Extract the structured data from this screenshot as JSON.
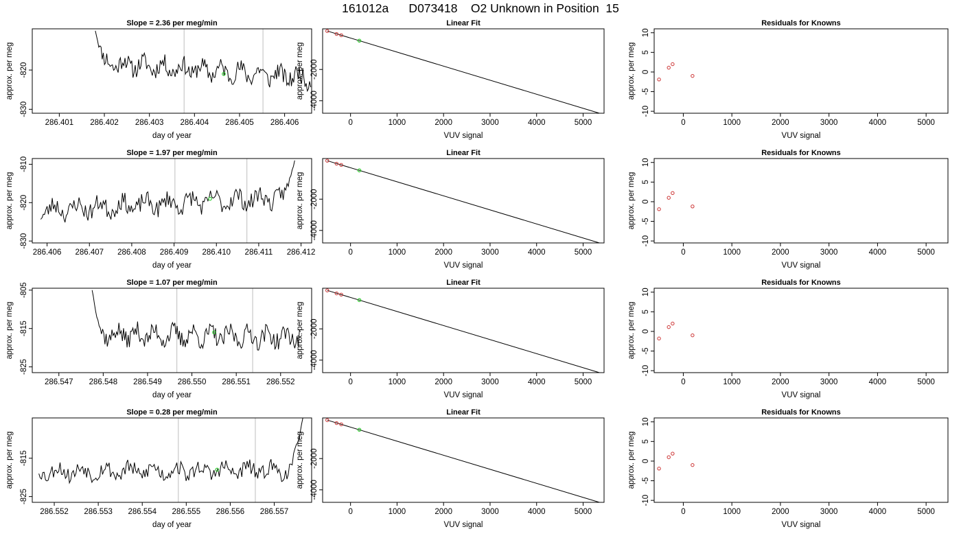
{
  "page": {
    "title": "161012a      D073418    O2 Unknown in Position  15"
  },
  "chart_data": [
    {
      "type": "line",
      "title": "Slope =  2.36  per meg/min",
      "xlabel": "day of year",
      "ylabel": "approx. per meg",
      "xlim": [
        286.4004,
        286.4066
      ],
      "ylim": [
        -831,
        -809.5
      ],
      "xticks": [
        "286.401",
        "286.402",
        "286.403",
        "286.404",
        "286.405",
        "286.406"
      ],
      "yticks": [
        -830,
        -820
      ],
      "vlines": [
        286.40377,
        286.40552
      ],
      "series": [
        {
          "trace": {
            "start": 286.4018,
            "end": 286.40658,
            "n": 190,
            "high": -810,
            "base": -818.0,
            "slope": -4.0,
            "noise": 2.2,
            "seed": 11,
            "spike": "start"
          }
        }
      ],
      "marker": {
        "x": 286.40465,
        "y": -821,
        "color": "#33cc33"
      }
    },
    {
      "type": "line",
      "title": "Linear Fit",
      "xlabel": "VUV signal",
      "ylabel": "approx. per meg",
      "xlim": [
        -600,
        5450
      ],
      "ylim": [
        -4800,
        600
      ],
      "xticks": [
        0,
        1000,
        2000,
        3000,
        4000,
        5000
      ],
      "yticks": [
        -4000,
        -2000
      ],
      "line": {
        "x": [
          -500,
          5350
        ],
        "y": [
          460,
          -4800
        ]
      },
      "points": {
        "x": [
          -500,
          -300,
          -200
        ],
        "y": [
          460,
          270,
          190
        ],
        "color": "#cc3333"
      },
      "marker": {
        "x": 190,
        "y": -160,
        "color": "#33cc33"
      }
    },
    {
      "type": "scatter",
      "title": "Residuals for Knowns",
      "xlabel": "VUV signal",
      "ylabel": "approx. per meg",
      "xlim": [
        -600,
        5450
      ],
      "ylim": [
        -10.5,
        11
      ],
      "xticks": [
        0,
        1000,
        2000,
        3000,
        4000,
        5000
      ],
      "yticks": [
        -10,
        -5,
        0,
        5,
        10
      ],
      "points": {
        "x": [
          -500,
          -300,
          -220,
          190
        ],
        "y": [
          -1.9,
          1.1,
          2.0,
          -1.0
        ],
        "color": "#cc3333"
      }
    },
    {
      "type": "line",
      "title": "Slope =  1.97  per meg/min",
      "xlabel": "day of year",
      "ylabel": "approx. per meg",
      "xlim": [
        286.40565,
        286.41225
      ],
      "ylim": [
        -830.5,
        -808.5
      ],
      "xticks": [
        "286.406",
        "286.407",
        "286.408",
        "286.409",
        "286.410",
        "286.411",
        "286.412"
      ],
      "yticks": [
        -830,
        -820,
        -810
      ],
      "vlines": [
        286.40902,
        286.41072
      ],
      "series": [
        {
          "trace": {
            "start": 286.40585,
            "end": 286.41185,
            "n": 200,
            "high": -809,
            "base": -822.0,
            "slope": 3.5,
            "noise": 2.3,
            "seed": 23,
            "spike": "end"
          }
        }
      ],
      "marker": {
        "x": 286.40985,
        "y": -819,
        "color": "#33cc33"
      }
    },
    {
      "type": "line",
      "title": "Linear Fit",
      "xlabel": "VUV signal",
      "ylabel": "approx. per meg",
      "xlim": [
        -600,
        5450
      ],
      "ylim": [
        -4800,
        600
      ],
      "xticks": [
        0,
        1000,
        2000,
        3000,
        4000,
        5000
      ],
      "yticks": [
        -4000,
        -2000
      ],
      "line": {
        "x": [
          -500,
          5350
        ],
        "y": [
          460,
          -4800
        ]
      },
      "points": {
        "x": [
          -500,
          -300,
          -200
        ],
        "y": [
          460,
          270,
          190
        ],
        "color": "#cc3333"
      },
      "marker": {
        "x": 190,
        "y": -160,
        "color": "#33cc33"
      }
    },
    {
      "type": "scatter",
      "title": "Residuals for Knowns",
      "xlabel": "VUV signal",
      "ylabel": "approx. per meg",
      "xlim": [
        -600,
        5450
      ],
      "ylim": [
        -10.5,
        11
      ],
      "xticks": [
        0,
        1000,
        2000,
        3000,
        4000,
        5000
      ],
      "yticks": [
        -10,
        -5,
        0,
        5,
        10
      ],
      "points": {
        "x": [
          -500,
          -300,
          -220,
          190
        ],
        "y": [
          -1.9,
          1.0,
          2.2,
          -1.2
        ],
        "color": "#cc3333"
      }
    },
    {
      "type": "line",
      "title": "Slope =  1.07  per meg/min",
      "xlabel": "day of year",
      "ylabel": "approx. per meg",
      "xlim": [
        286.5464,
        286.5527
      ],
      "ylim": [
        -826.5,
        -804.5
      ],
      "xticks": [
        "286.547",
        "286.548",
        "286.549",
        "286.550",
        "286.551",
        "286.552"
      ],
      "yticks": [
        -825,
        -815,
        -805
      ],
      "vlines": [
        286.54966,
        286.55137
      ],
      "series": [
        {
          "trace": {
            "start": 286.54775,
            "end": 286.55245,
            "n": 180,
            "high": -805,
            "base": -816.5,
            "slope": -0.8,
            "noise": 2.3,
            "seed": 37,
            "spike": "start"
          }
        }
      ],
      "marker": {
        "x": 286.5505,
        "y": -816,
        "color": "#33cc33"
      }
    },
    {
      "type": "line",
      "title": "Linear Fit",
      "xlabel": "VUV signal",
      "ylabel": "approx. per meg",
      "xlim": [
        -600,
        5450
      ],
      "ylim": [
        -4800,
        600
      ],
      "xticks": [
        0,
        1000,
        2000,
        3000,
        4000,
        5000
      ],
      "yticks": [
        -4000,
        -2000
      ],
      "line": {
        "x": [
          -500,
          5350
        ],
        "y": [
          460,
          -4800
        ]
      },
      "points": {
        "x": [
          -500,
          -300,
          -200
        ],
        "y": [
          460,
          270,
          190
        ],
        "color": "#cc3333"
      },
      "marker": {
        "x": 190,
        "y": -160,
        "color": "#33cc33"
      }
    },
    {
      "type": "scatter",
      "title": "Residuals for Knowns",
      "xlabel": "VUV signal",
      "ylabel": "approx. per meg",
      "xlim": [
        -600,
        5450
      ],
      "ylim": [
        -10.5,
        11
      ],
      "xticks": [
        0,
        1000,
        2000,
        3000,
        4000,
        5000
      ],
      "yticks": [
        -10,
        -5,
        0,
        5,
        10
      ],
      "points": {
        "x": [
          -500,
          -300,
          -220,
          190
        ],
        "y": [
          -1.8,
          1.1,
          2.0,
          -1.0
        ],
        "color": "#cc3333"
      }
    },
    {
      "type": "line",
      "title": "Slope =  0.28  per meg/min",
      "xlabel": "day of year",
      "ylabel": "approx. per meg",
      "xlim": [
        286.5515,
        286.55785
      ],
      "ylim": [
        -826.5,
        -804.5
      ],
      "xticks": [
        "286.552",
        "286.553",
        "286.554",
        "286.555",
        "286.556",
        "286.557"
      ],
      "yticks": [
        -825,
        -815
      ],
      "vlines": [
        286.55482,
        286.55657
      ],
      "series": [
        {
          "trace": {
            "start": 286.55165,
            "end": 286.55765,
            "n": 200,
            "high": -804.5,
            "base": -818.5,
            "slope": 0.4,
            "noise": 2.0,
            "seed": 53,
            "spike": "end"
          }
        }
      ],
      "marker": {
        "x": 286.5557,
        "y": -818,
        "color": "#33cc33"
      }
    },
    {
      "type": "line",
      "title": "Linear Fit",
      "xlabel": "VUV signal",
      "ylabel": "approx. per meg",
      "xlim": [
        -600,
        5450
      ],
      "ylim": [
        -4800,
        600
      ],
      "xticks": [
        0,
        1000,
        2000,
        3000,
        4000,
        5000
      ],
      "yticks": [
        -4000,
        -2000
      ],
      "line": {
        "x": [
          -500,
          5350
        ],
        "y": [
          460,
          -4800
        ]
      },
      "points": {
        "x": [
          -500,
          -300,
          -200
        ],
        "y": [
          460,
          270,
          190
        ],
        "color": "#cc3333"
      },
      "marker": {
        "x": 190,
        "y": -160,
        "color": "#33cc33"
      }
    },
    {
      "type": "scatter",
      "title": "Residuals for Knowns",
      "xlabel": "VUV signal",
      "ylabel": "approx. per meg",
      "xlim": [
        -600,
        5450
      ],
      "ylim": [
        -10.5,
        11
      ],
      "xticks": [
        0,
        1000,
        2000,
        3000,
        4000,
        5000
      ],
      "yticks": [
        -10,
        -5,
        0,
        5,
        10
      ],
      "points": {
        "x": [
          -500,
          -300,
          -220,
          190
        ],
        "y": [
          -1.9,
          1.0,
          1.9,
          -1.0
        ],
        "color": "#cc3333"
      }
    }
  ]
}
